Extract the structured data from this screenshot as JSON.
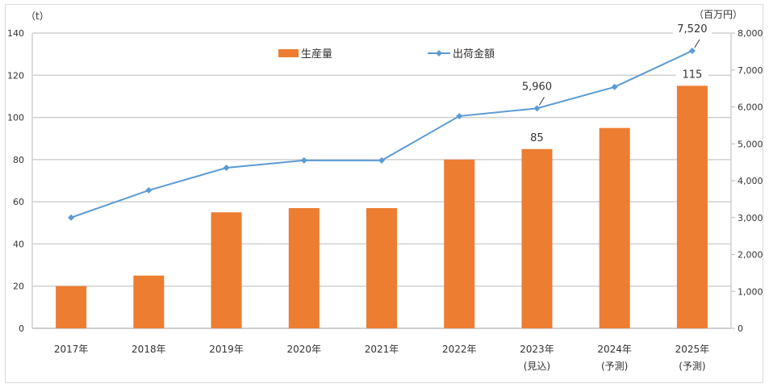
{
  "chart_data": {
    "type": "bar+line",
    "categories": [
      "2017年",
      "2018年",
      "2019年",
      "2020年",
      "2021年",
      "2022年",
      "2023年",
      "2024年",
      "2025年"
    ],
    "category_sublabels": [
      "",
      "",
      "",
      "",
      "",
      "",
      "(見込)",
      "(予測)",
      "(予測)"
    ],
    "series": [
      {
        "name": "生産量",
        "type": "bar",
        "axis": "left",
        "color": "#ED7D31",
        "values": [
          20,
          25,
          55,
          57,
          57,
          80,
          85,
          95,
          115
        ],
        "data_labels": {
          "6": "85",
          "8": "115"
        }
      },
      {
        "name": "出荷金額",
        "type": "line",
        "axis": "right",
        "color": "#5B9BD5",
        "values": [
          3000,
          3740,
          4350,
          4550,
          4550,
          5750,
          5960,
          6540,
          7520
        ],
        "data_labels": {
          "6": "5,960",
          "8": "7,520"
        }
      }
    ],
    "left_axis": {
      "unit_label": "（t）",
      "ylim": [
        0,
        140
      ],
      "ticks": [
        0,
        20,
        40,
        60,
        80,
        100,
        120,
        140
      ],
      "tick_labels": [
        "0",
        "20",
        "40",
        "60",
        "80",
        "100",
        "120",
        "140"
      ]
    },
    "right_axis": {
      "unit_label": "（百万円）",
      "ylim": [
        0,
        8000
      ],
      "ticks": [
        0,
        1000,
        2000,
        3000,
        4000,
        5000,
        6000,
        7000,
        8000
      ],
      "tick_labels": [
        "0",
        "1,000",
        "2,000",
        "3,000",
        "4,000",
        "5,000",
        "6,000",
        "7,000",
        "8,000"
      ]
    },
    "grid": true,
    "legend_position": "top-center"
  }
}
